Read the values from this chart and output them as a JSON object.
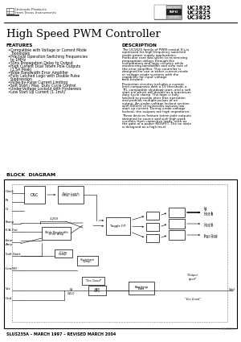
{
  "title": "High Speed PWM Controller",
  "part_numbers": [
    "UC1825",
    "UC2825",
    "UC3825"
  ],
  "logo_text1": "Unitrode Products",
  "logo_text2": "from Texas Instruments",
  "features_title": "FEATURES",
  "features": [
    "Compatible with Voltage or Current Mode\nTopologies",
    "Practical Operation Switching Frequencies\nto 1MHz",
    "50ns Propagation Delay to Output",
    "High Current Dual Totem Pole Outputs\n(1.5A Peak)",
    "Wide Bandwidth Error Amplifier",
    "Fully Latched Logic with Double Pulse\nSuppression",
    "Pulse-by-Pulse Current Limiting",
    "Soft Start / Max. Duty Cycle Control",
    "Under-Voltage Lockout with Hysteresis",
    "Low Start Up Current (1.1mA)"
  ],
  "description_title": "DESCRIPTION",
  "desc_para1": "The UC1825 family of PWM control ICs is optimized for high frequency switched mode power supply applications. Particular care was given to minimizing propagation delays through the comparators and logic circuitry while maximizing bandwidth and slew rate of the error amplifier. This controller is designed for use in either current-mode or voltage mode systems with the capability for input voltage feed-forward.",
  "desc_para2": "Protection circuitry includes a current limit comparator with a 1V threshold, a TTL compatible shutdown port, and a soft start pin which will double as a maximum duty cycle clamp. The logic is fully latched to provide jitter free operation and prohibit multiple pulses at an output. An under-voltage lockout section with 800mV of hysteresis assures low start up current. During under-voltage lockout, the outputs are high impedance.",
  "desc_para3": "These devices feature totem pole outputs designed to source and sink high peak currents from capacitive loads, such as the gate of a power MOSFET. The on state is designed as a high level.",
  "block_diagram_title": "BLOCK  DIAGRAM",
  "footer": "SLUS235A – MARCH 1997 – REVISED MARCH 2004",
  "bg_color": "#ffffff"
}
